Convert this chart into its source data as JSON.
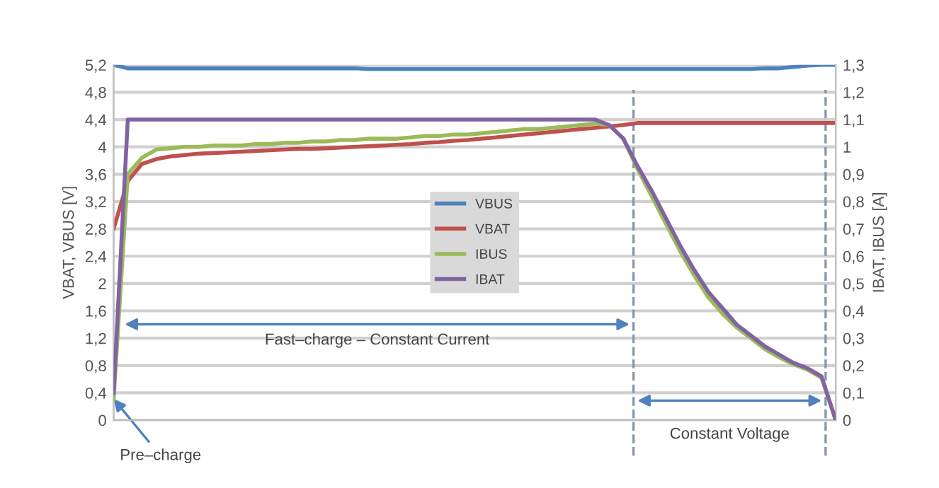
{
  "chart_data": {
    "type": "line",
    "ylabel": "VBAT, VBUS [V]",
    "y2label": "IBAT, IBUS [A]",
    "categories": [
      null,
      null,
      null,
      null,
      null,
      null,
      null,
      null,
      null,
      null,
      null,
      null,
      null,
      null,
      null,
      null,
      null,
      null,
      null,
      null,
      null,
      null,
      null,
      null,
      null,
      null,
      null,
      null,
      null,
      null,
      null,
      null,
      null,
      null,
      null,
      null,
      null,
      null,
      null,
      null,
      null,
      null,
      null,
      null,
      null,
      null,
      null,
      null,
      null,
      null,
      null,
      null
    ],
    "series": [
      {
        "name": "VBUS",
        "color": "#4f81bd",
        "values": [
          5.2,
          5.15,
          5.15,
          5.15,
          5.15,
          5.15,
          5.15,
          5.15,
          5.15,
          5.15,
          5.15,
          5.15,
          5.15,
          5.15,
          5.15,
          5.15,
          5.15,
          5.15,
          5.14,
          5.14,
          5.14,
          5.14,
          5.14,
          5.14,
          5.14,
          5.14,
          5.14,
          5.14,
          5.14,
          5.14,
          5.14,
          5.14,
          5.14,
          5.14,
          5.14,
          5.14,
          5.14,
          5.14,
          5.14,
          5.14,
          5.14,
          5.14,
          5.14,
          5.14,
          5.14,
          5.14,
          5.15,
          5.15,
          5.17,
          5.19,
          5.2,
          5.2
        ]
      },
      {
        "name": "VBAT",
        "color": "#c0504d",
        "values": [
          2.8,
          3.5,
          3.75,
          3.82,
          3.86,
          3.88,
          3.9,
          3.91,
          3.92,
          3.93,
          3.94,
          3.95,
          3.96,
          3.97,
          3.97,
          3.98,
          3.99,
          4.0,
          4.01,
          4.02,
          4.03,
          4.04,
          4.06,
          4.07,
          4.09,
          4.1,
          4.12,
          4.14,
          4.16,
          4.18,
          4.2,
          4.22,
          4.24,
          4.26,
          4.28,
          4.3,
          4.32,
          4.35,
          4.35,
          4.35,
          4.35,
          4.35,
          4.35,
          4.35,
          4.35,
          4.35,
          4.35,
          4.35,
          4.35,
          4.35,
          4.35,
          4.35
        ]
      },
      {
        "name": "IBUS",
        "color": "#9bbb59",
        "axis": "y2",
        "values": [
          0.075,
          0.9,
          0.96,
          0.99,
          0.995,
          1.0,
          1.0,
          1.005,
          1.005,
          1.005,
          1.01,
          1.01,
          1.015,
          1.015,
          1.02,
          1.02,
          1.025,
          1.025,
          1.03,
          1.03,
          1.03,
          1.035,
          1.04,
          1.04,
          1.045,
          1.045,
          1.05,
          1.055,
          1.06,
          1.065,
          1.065,
          1.07,
          1.075,
          1.08,
          1.085,
          1.08,
          1.03,
          0.92,
          0.82,
          0.72,
          0.62,
          0.53,
          0.45,
          0.39,
          0.34,
          0.3,
          0.26,
          0.23,
          0.205,
          0.185,
          0.155,
          0.0
        ]
      },
      {
        "name": "IBAT",
        "color": "#8064a2",
        "axis": "y2",
        "values": [
          0.1,
          1.1,
          1.1,
          1.1,
          1.1,
          1.1,
          1.1,
          1.1,
          1.1,
          1.1,
          1.1,
          1.1,
          1.1,
          1.1,
          1.1,
          1.1,
          1.1,
          1.1,
          1.1,
          1.1,
          1.1,
          1.1,
          1.1,
          1.1,
          1.1,
          1.1,
          1.1,
          1.1,
          1.1,
          1.1,
          1.1,
          1.1,
          1.1,
          1.1,
          1.1,
          1.08,
          1.03,
          0.93,
          0.84,
          0.74,
          0.64,
          0.55,
          0.47,
          0.41,
          0.35,
          0.31,
          0.27,
          0.24,
          0.21,
          0.19,
          0.16,
          0.0
        ]
      }
    ],
    "ylim": [
      0,
      5.2
    ],
    "yticks": [
      0,
      {
        "value": 0.4,
        "label": "0,4"
      },
      {
        "value": 0.8,
        "label": "0,8"
      },
      {
        "value": 1.2,
        "label": "1,2"
      },
      {
        "value": 1.6,
        "label": "1,6"
      },
      2,
      {
        "value": 2.4,
        "label": "2,4"
      },
      {
        "value": 2.8,
        "label": "2,8"
      },
      {
        "value": 3.2,
        "label": "3,2"
      },
      {
        "value": 3.6,
        "label": "3,6"
      },
      4,
      {
        "value": 4.4,
        "label": "4,4"
      },
      {
        "value": 4.8,
        "label": "4,8"
      },
      {
        "value": 5.2,
        "label": "5,2"
      }
    ],
    "y2lim": [
      0,
      1.3
    ],
    "y2ticks": [
      0,
      {
        "value": 0.1,
        "label": "0,1"
      },
      {
        "value": 0.2,
        "label": "0,2"
      },
      {
        "value": 0.3,
        "label": "0,3"
      },
      {
        "value": 0.4,
        "label": "0,4"
      },
      {
        "value": 0.5,
        "label": "0,5"
      },
      {
        "value": 0.6,
        "label": "0,6"
      },
      {
        "value": 0.7,
        "label": "0,7"
      },
      {
        "value": 0.8,
        "label": "0,8"
      },
      {
        "value": 0.9,
        "label": "0,9"
      },
      1,
      {
        "value": 1.1,
        "label": "1,1"
      },
      {
        "value": 1.2,
        "label": "1,2"
      },
      {
        "value": 1.3,
        "label": "1,3"
      }
    ],
    "annotations": [
      "Fast–charge – Constant Current",
      "Constant Voltage",
      "Pre–charge"
    ],
    "grid": "y",
    "legend": "center",
    "marker": "none",
    "line_style": "solid"
  }
}
